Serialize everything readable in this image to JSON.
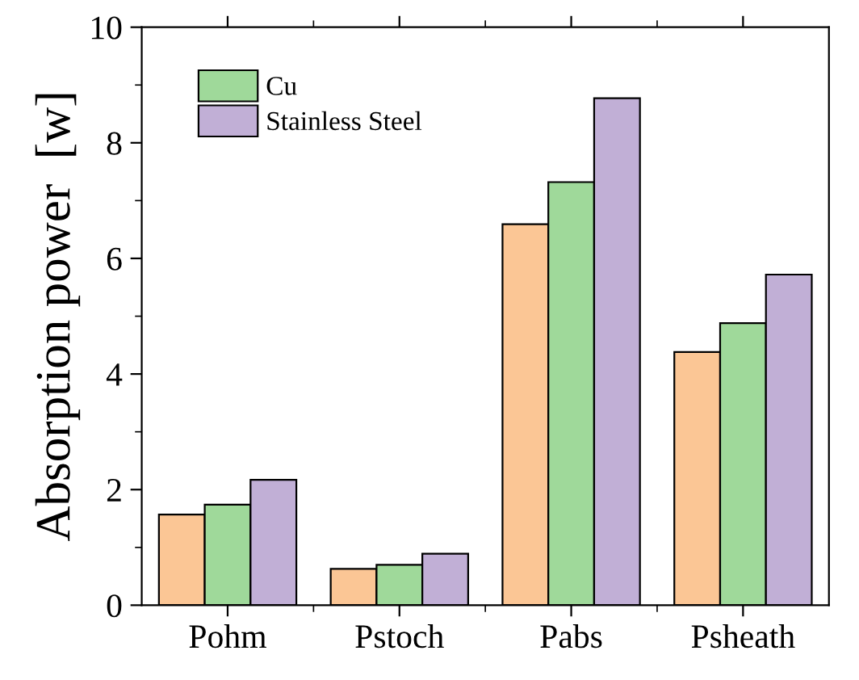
{
  "chart_data": {
    "type": "bar",
    "ylabel": "Absorption power  [w]",
    "categories": [
      "Pohm",
      "Pstoch",
      "Pabs",
      "Psheath"
    ],
    "series": [
      {
        "color": "#fbc695",
        "values": [
          1.57,
          0.63,
          6.59,
          4.38
        ]
      },
      {
        "name": "Cu",
        "color": "#9fd99a",
        "values": [
          1.74,
          0.7,
          7.32,
          4.88
        ]
      },
      {
        "name": "Stainless Steel",
        "color": "#c1afd6",
        "values": [
          2.17,
          0.89,
          8.77,
          5.72
        ]
      }
    ],
    "ylim": [
      0,
      10
    ],
    "yticks": [
      0,
      2,
      4,
      6,
      8,
      10
    ],
    "grid": false,
    "legend": "top left"
  }
}
